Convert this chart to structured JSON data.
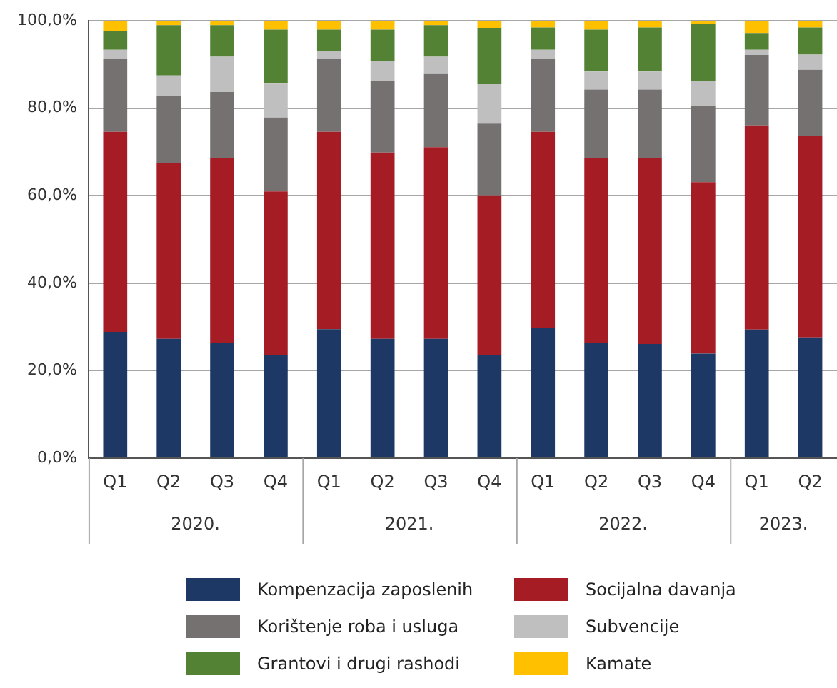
{
  "chart_data": {
    "type": "bar",
    "stacked": true,
    "categories": [
      "Q1",
      "Q2",
      "Q3",
      "Q4",
      "Q1",
      "Q2",
      "Q3",
      "Q4",
      "Q1",
      "Q2",
      "Q3",
      "Q4",
      "Q1",
      "Q2"
    ],
    "annotations": [
      "2020.",
      "2021.",
      "2022.",
      "2023."
    ],
    "series": [
      {
        "name": "Kompenzacija zaposlenih",
        "color": "#1d3864",
        "values": [
          28.9,
          27.3,
          26.4,
          23.6,
          29.5,
          27.3,
          27.3,
          23.6,
          29.8,
          26.4,
          26.1,
          23.9,
          29.4,
          27.6
        ]
      },
      {
        "name": "Socijalna davanja",
        "color": "#a51c24",
        "values": [
          45.7,
          40.1,
          42.2,
          37.4,
          45.1,
          42.6,
          43.8,
          36.5,
          44.8,
          42.2,
          42.5,
          39.2,
          46.7,
          46.0
        ]
      },
      {
        "name": "Korištenje roba i usluga",
        "color": "#757170",
        "values": [
          16.7,
          15.5,
          15.1,
          16.9,
          16.7,
          16.4,
          16.9,
          16.4,
          16.7,
          15.7,
          15.7,
          17.4,
          16.1,
          15.2
        ]
      },
      {
        "name": "Subvencije",
        "color": "#bfbfbf",
        "values": [
          2.1,
          4.6,
          8.1,
          7.9,
          1.8,
          4.6,
          3.8,
          9.0,
          2.1,
          4.1,
          4.1,
          5.8,
          1.2,
          3.5
        ]
      },
      {
        "name": "Grantovi i drugi rashodi",
        "color": "#548235",
        "values": [
          4.2,
          11.5,
          7.2,
          12.2,
          4.9,
          7.1,
          7.2,
          12.9,
          5.1,
          9.6,
          10.1,
          13.0,
          3.8,
          6.2
        ]
      },
      {
        "name": "Kamate",
        "color": "#ffc000",
        "values": [
          2.4,
          1.0,
          1.0,
          2.0,
          2.0,
          2.0,
          1.0,
          1.6,
          1.5,
          2.0,
          1.5,
          0.7,
          2.8,
          1.5
        ]
      }
    ],
    "ylim": [
      0,
      100
    ],
    "yticks": [
      {
        "value": 0,
        "label": "0,0%"
      },
      {
        "value": 20,
        "label": "20,0%"
      },
      {
        "value": 40,
        "label": "40,0%"
      },
      {
        "value": 60,
        "label": "60,0%"
      },
      {
        "value": 80,
        "label": "80,0%"
      },
      {
        "value": 100,
        "label": "100,0%"
      }
    ],
    "grid": "y",
    "legend": "bottom"
  }
}
